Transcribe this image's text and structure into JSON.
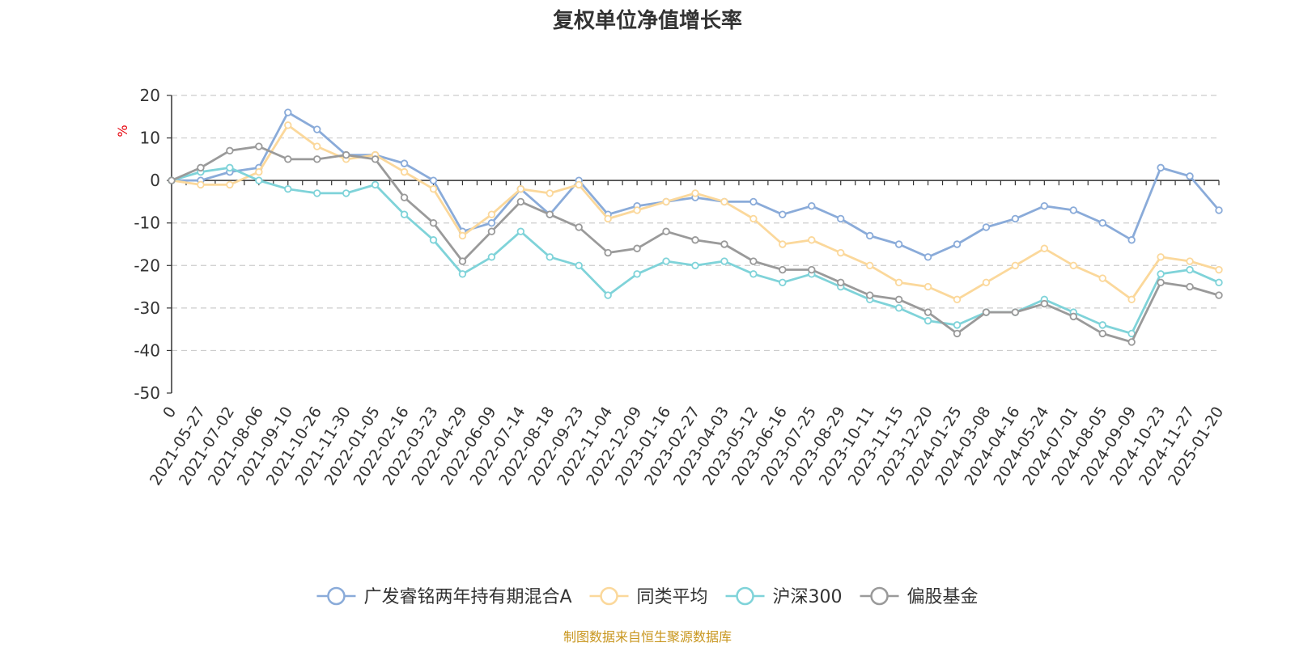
{
  "chart_data": {
    "type": "line",
    "title": "复权单位净值增长率",
    "ylabel": "%",
    "ylim": [
      -50,
      20
    ],
    "yticks": [
      20,
      10,
      0,
      -10,
      -20,
      -30,
      -40,
      -50
    ],
    "grid": true,
    "legend_position": "bottom",
    "x": [
      "0",
      "2021-05-27",
      "2021-07-02",
      "2021-08-06",
      "2021-09-10",
      "2021-10-26",
      "2021-11-30",
      "2022-01-05",
      "2022-02-16",
      "2022-03-23",
      "2022-04-29",
      "2022-06-09",
      "2022-07-14",
      "2022-08-18",
      "2022-09-23",
      "2022-11-04",
      "2022-12-09",
      "2023-01-16",
      "2023-02-27",
      "2023-04-03",
      "2023-05-12",
      "2023-06-16",
      "2023-07-25",
      "2023-08-29",
      "2023-10-11",
      "2023-11-15",
      "2023-12-20",
      "2024-01-25",
      "2024-03-08",
      "2024-04-16",
      "2024-05-24",
      "2024-07-01",
      "2024-08-05",
      "2024-09-09",
      "2024-10-23",
      "2024-11-27",
      "2025-01-20"
    ],
    "series": [
      {
        "name": "广发睿铭两年持有期混合A",
        "color": "#8aabd9",
        "values": [
          0,
          0,
          2,
          3,
          16,
          12,
          6,
          6,
          4,
          0,
          -12,
          -10,
          -2,
          -8,
          0,
          -8,
          -6,
          -5,
          -4,
          -5,
          -5,
          -8,
          -6,
          -9,
          -13,
          -15,
          -18,
          -15,
          -11,
          -9,
          -6,
          -7,
          -10,
          -14,
          3,
          1,
          -7
        ]
      },
      {
        "name": "同类平均",
        "color": "#fbd89b",
        "values": [
          0,
          -1,
          -1,
          2,
          13,
          8,
          5,
          6,
          2,
          -2,
          -13,
          -8,
          -2,
          -3,
          -1,
          -9,
          -7,
          -5,
          -3,
          -5,
          -9,
          -15,
          -14,
          -17,
          -20,
          -24,
          -25,
          -28,
          -24,
          -20,
          -16,
          -20,
          -23,
          -28,
          -18,
          -19,
          -21
        ]
      },
      {
        "name": "沪深300",
        "color": "#7fd3d9",
        "values": [
          0,
          2,
          3,
          0,
          -2,
          -3,
          -3,
          -1,
          -8,
          -14,
          -22,
          -18,
          -12,
          -18,
          -20,
          -27,
          -22,
          -19,
          -20,
          -19,
          -22,
          -24,
          -22,
          -25,
          -28,
          -30,
          -33,
          -34,
          -31,
          -31,
          -28,
          -31,
          -34,
          -36,
          -22,
          -21,
          -24
        ]
      },
      {
        "name": "偏股基金",
        "color": "#9a9a9a",
        "values": [
          0,
          3,
          7,
          8,
          5,
          5,
          6,
          5,
          -4,
          -10,
          -19,
          -12,
          -5,
          -8,
          -11,
          -17,
          -16,
          -12,
          -14,
          -15,
          -19,
          -21,
          -21,
          -24,
          -27,
          -28,
          -31,
          -36,
          -31,
          -31,
          -29,
          -32,
          -36,
          -38,
          -24,
          -25,
          -27
        ]
      }
    ]
  },
  "source": "制图数据来自恒生聚源数据库"
}
